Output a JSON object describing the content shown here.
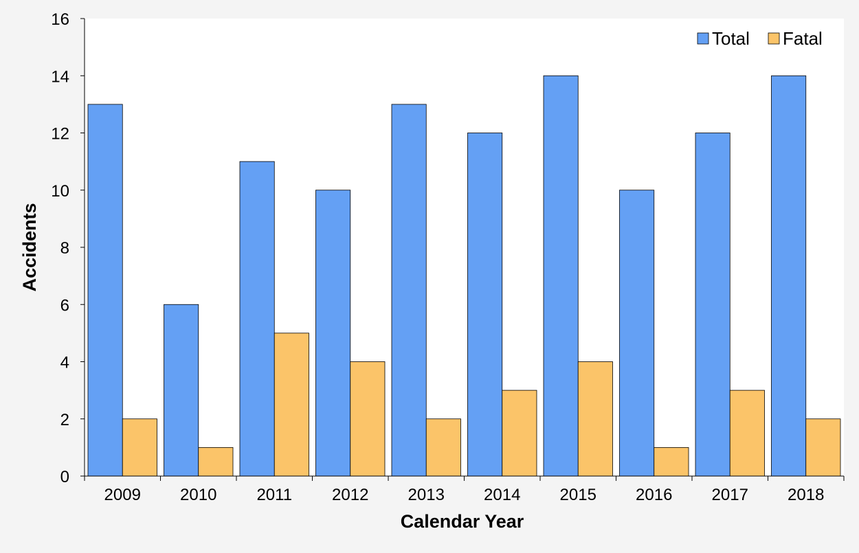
{
  "chart_data": {
    "type": "bar",
    "title": "",
    "xlabel": "Calendar Year",
    "ylabel": "Accidents",
    "categories": [
      "2009",
      "2010",
      "2011",
      "2012",
      "2013",
      "2014",
      "2015",
      "2016",
      "2017",
      "2018"
    ],
    "series": [
      {
        "name": "Total",
        "values": [
          13,
          6,
          11,
          10,
          13,
          12,
          14,
          10,
          12,
          14
        ],
        "color": "#64a0f4"
      },
      {
        "name": "Fatal",
        "values": [
          2,
          1,
          5,
          4,
          2,
          3,
          4,
          1,
          3,
          2
        ],
        "color": "#fbc469"
      }
    ],
    "ylim": [
      0,
      16
    ],
    "yticks": [
      "0",
      "2",
      "4",
      "6",
      "8",
      "10",
      "12",
      "14",
      "16"
    ],
    "grid": false,
    "legend": "top-right",
    "plot_background": "#ffffff",
    "page_background": "#f4f4f4"
  }
}
